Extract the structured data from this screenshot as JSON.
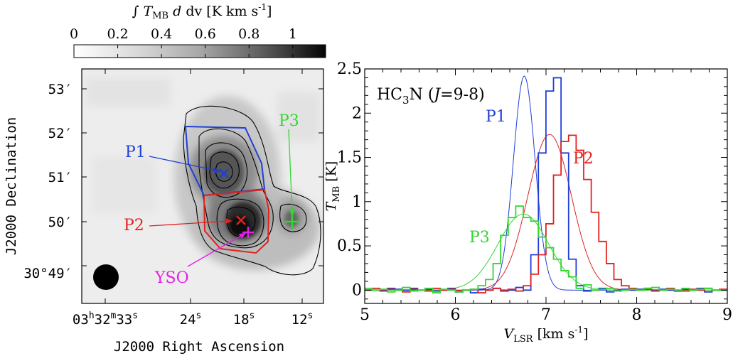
{
  "colors": {
    "blue": "#1f3fd6",
    "red": "#e0231f",
    "green": "#33d633",
    "magenta": "#e51fe5",
    "map_bg": "#ededed"
  },
  "chart_data": [
    {
      "type": "heatmap",
      "colorbar": {
        "label_prefix": "∫",
        "label_T": "T",
        "label_T_sub": "MB",
        "label_rest": " dv [K km s",
        "label_sup": "-1",
        "label_end": "]",
        "ticks": [
          "0",
          "0.2",
          "0.4",
          "0.6",
          "0.8",
          "1"
        ],
        "tick_values": [
          0,
          0.2,
          0.4,
          0.6,
          0.8,
          1
        ],
        "range": [
          0,
          1.15
        ],
        "colormap": "gray_r"
      },
      "xlabel": "J2000 Right Ascension",
      "ylabel": "J2000 Declination",
      "xticks": [
        {
          "h": "03",
          "hu": "h",
          "m": "32",
          "mu": "m",
          "s": "33",
          "su": "s"
        },
        {
          "s": "24",
          "su": "s"
        },
        {
          "s": "18",
          "su": "s"
        },
        {
          "s": "12",
          "su": "s"
        }
      ],
      "xtick_values": [
        33,
        24,
        18,
        12
      ],
      "yticks": [
        "53′",
        "52′",
        "51′",
        "50′",
        "30°49′"
      ],
      "ytick_values": [
        53,
        52,
        51,
        50,
        49
      ],
      "grid": false,
      "annotations": [
        {
          "label": "P1",
          "color": "#1f3fd6",
          "marker": "x"
        },
        {
          "label": "P2",
          "color": "#e0231f",
          "marker": "x"
        },
        {
          "label": "P3",
          "color": "#33d633",
          "marker": "+"
        },
        {
          "label": "YSO",
          "color": "#e51fe5",
          "marker": "+"
        }
      ],
      "beam": "filled circle, bottom-left"
    },
    {
      "type": "line",
      "title": "HC3N (J=9-8)",
      "title_parts": {
        "a": "HC",
        "sub": "3",
        "b": "N (",
        "j": "J",
        "c": "=9-8)"
      },
      "xlabel": "V_LSR [km s^-1]",
      "xlabel_parts": {
        "V": "V",
        "sub": "LSR",
        "rest": " [km s",
        "sup": "-1",
        "end": "]"
      },
      "ylabel": "T_MB [K]",
      "ylabel_parts": {
        "T": "T",
        "sub": "MB",
        "rest": " [K]"
      },
      "xlim": [
        5,
        9
      ],
      "ylim": [
        -0.15,
        2.5
      ],
      "xticks": [
        "5",
        "6",
        "7",
        "8",
        "9"
      ],
      "yticks": [
        "0",
        "0.5",
        "1",
        "1.5",
        "2",
        "2.5"
      ],
      "ytick_values": [
        0,
        0.5,
        1,
        1.5,
        2,
        2.5
      ],
      "xtick_values": [
        5,
        6,
        7,
        8,
        9
      ],
      "grid": false,
      "legend": "inline labels",
      "step_width": 0.0833,
      "step_x0": 5.0,
      "series": [
        {
          "name": "P1",
          "color": "#1f3fd6",
          "values": [
            0.0,
            0.0,
            0.0,
            0.02,
            0.01,
            0.0,
            0.02,
            0.0,
            0.01,
            -0.01,
            0.0,
            0.02,
            -0.02,
            0.0,
            -0.03,
            0.01,
            0.0,
            0.02,
            -0.01,
            0.0,
            0.03,
            0.0,
            0.4,
            1.55,
            2.25,
            2.4,
            1.55,
            0.35,
            0.05,
            -0.01,
            0.0,
            0.02,
            -0.02,
            0.0,
            0.01,
            0.0,
            0.01,
            0.02,
            0.0,
            0.01,
            0.0,
            -0.01,
            0.01,
            0.0,
            0.02,
            -0.02,
            0.0,
            0.0
          ],
          "fit": {
            "amp": 2.42,
            "center": 6.76,
            "sigma": 0.12
          }
        },
        {
          "name": "P2",
          "color": "#e0231f",
          "values": [
            0.0,
            0.02,
            -0.01,
            0.01,
            0.0,
            -0.02,
            0.01,
            0.0,
            -0.01,
            0.02,
            0.0,
            0.01,
            -0.01,
            0.0,
            0.01,
            -0.03,
            0.0,
            0.02,
            0.0,
            0.01,
            -0.01,
            0.05,
            0.18,
            0.4,
            0.75,
            1.3,
            1.68,
            1.75,
            1.58,
            1.25,
            0.88,
            0.55,
            0.3,
            0.12,
            0.05,
            0.02,
            0.0,
            0.01,
            -0.01,
            0.0,
            0.02,
            0.0,
            -0.01,
            0.01,
            0.0,
            0.02,
            0.0,
            0.01
          ],
          "fit": {
            "amp": 1.76,
            "center": 7.04,
            "sigma": 0.24
          }
        },
        {
          "name": "P3",
          "color": "#33d633",
          "values": [
            0.02,
            0.0,
            0.01,
            -0.02,
            0.0,
            0.03,
            -0.01,
            0.0,
            0.02,
            -0.03,
            0.01,
            0.0,
            -0.02,
            0.0,
            0.01,
            0.05,
            0.12,
            0.3,
            0.62,
            0.82,
            0.95,
            0.82,
            0.78,
            0.6,
            0.48,
            0.35,
            0.22,
            0.15,
            0.02,
            0.06,
            0.0,
            0.01,
            0.02,
            -0.01,
            0.0,
            0.01,
            0.0,
            0.02,
            0.03,
            0.0,
            0.01,
            0.0,
            0.02,
            0.0,
            0.01,
            0.02,
            0.0,
            0.0
          ],
          "fit": {
            "amp": 0.86,
            "center": 6.75,
            "sigma": 0.28
          }
        }
      ]
    }
  ]
}
